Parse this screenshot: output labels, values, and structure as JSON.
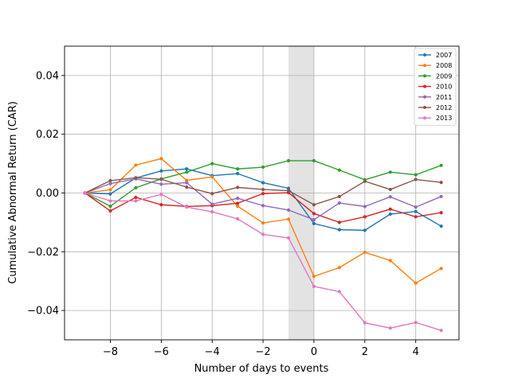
{
  "chart_data": {
    "type": "line",
    "title": "",
    "xlabel": "Number of days to events",
    "ylabel": "Cumulative Abnormal Return (CAR)",
    "xlim": [
      -9.8,
      5.7
    ],
    "ylim": [
      -0.05,
      0.05
    ],
    "grid": true,
    "legend_position": "top-right",
    "shaded_region": {
      "x_start": -1,
      "x_end": 0,
      "color": "#e3e3e3"
    },
    "x_ticks": [
      -8,
      -6,
      -4,
      -2,
      0,
      2,
      4
    ],
    "x_tick_labels": [
      "−8",
      "−6",
      "−4",
      "−2",
      "0",
      "2",
      "4"
    ],
    "y_ticks": [
      -0.04,
      -0.02,
      0.0,
      0.02,
      0.04
    ],
    "y_tick_labels": [
      "−0.04",
      "−0.02",
      "0.00",
      "0.02",
      "0.04"
    ],
    "x": [
      -9,
      -8,
      -7,
      -6,
      -5,
      -4,
      -3,
      -2,
      -1,
      0,
      1,
      2,
      3,
      4,
      5
    ],
    "series": [
      {
        "name": "2007",
        "color": "#1f77b4",
        "values": [
          0.0,
          -0.0003,
          0.0051,
          0.0075,
          0.0082,
          0.0059,
          0.0066,
          0.0035,
          0.0016,
          -0.0104,
          -0.0125,
          -0.0127,
          -0.0072,
          -0.0063,
          -0.0113
        ]
      },
      {
        "name": "2008",
        "color": "#ff7f0e",
        "values": [
          0.0,
          0.0011,
          0.0095,
          0.0117,
          0.0043,
          0.0055,
          -0.0045,
          -0.0102,
          -0.0089,
          -0.0284,
          -0.0254,
          -0.0202,
          -0.023,
          -0.0307,
          -0.0257
        ]
      },
      {
        "name": "2009",
        "color": "#2ca02c",
        "values": [
          0.0,
          -0.0045,
          0.0018,
          0.0048,
          0.0071,
          0.01,
          0.0082,
          0.0088,
          0.011,
          0.011,
          0.0078,
          0.0045,
          0.0071,
          0.0062,
          0.0094
        ]
      },
      {
        "name": "2010",
        "color": "#d62728",
        "values": [
          0.0,
          -0.0061,
          -0.0015,
          -0.004,
          -0.0046,
          -0.0043,
          -0.0035,
          -0.0002,
          0.0001,
          -0.007,
          -0.01,
          -0.0081,
          -0.0055,
          -0.0081,
          -0.0067
        ]
      },
      {
        "name": "2011",
        "color": "#9467bd",
        "values": [
          0.0,
          0.0032,
          0.0048,
          0.003,
          0.0035,
          -0.0038,
          -0.0018,
          -0.0043,
          -0.0058,
          -0.0091,
          -0.0034,
          -0.0046,
          -0.0013,
          -0.0048,
          -0.0012
        ]
      },
      {
        "name": "2012",
        "color": "#8c564b",
        "values": [
          0.0,
          0.0042,
          0.0052,
          0.0047,
          0.002,
          -0.0002,
          0.0019,
          0.0012,
          0.0008,
          -0.004,
          -0.0012,
          0.004,
          0.0012,
          0.0046,
          0.0036
        ]
      },
      {
        "name": "2013",
        "color": "#e377c2",
        "values": [
          0.0,
          -0.0027,
          -0.0027,
          -0.0005,
          -0.0048,
          -0.0064,
          -0.0088,
          -0.0141,
          -0.0153,
          -0.0318,
          -0.0336,
          -0.0442,
          -0.046,
          -0.0441,
          -0.0468
        ]
      }
    ]
  }
}
